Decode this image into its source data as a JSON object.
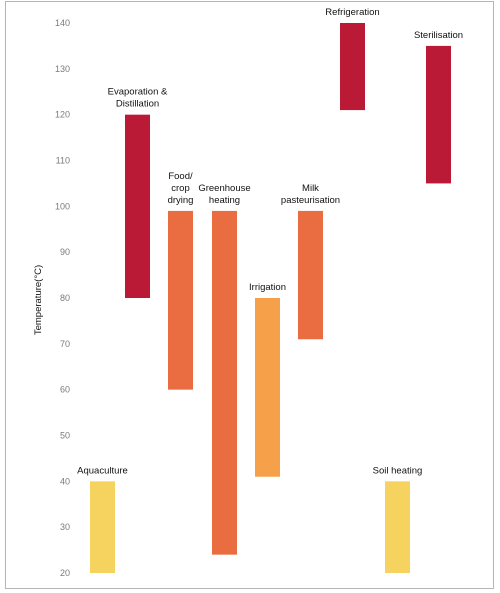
{
  "chart_data": {
    "type": "bar",
    "subtype": "floating-range",
    "ylabel": "Temperature(°C)",
    "ylim": [
      20,
      140
    ],
    "yticks": [
      20,
      30,
      40,
      50,
      60,
      70,
      80,
      90,
      100,
      110,
      120,
      130,
      140
    ],
    "grid": false,
    "legend": "none",
    "colors": {
      "dark_red": "#bb1a36",
      "orange": "#ea6d42",
      "light_orange": "#f6a14a",
      "yellow": "#f6d35e"
    },
    "series": [
      {
        "category": [
          "Aquaculture"
        ],
        "low": 20,
        "high": 40,
        "color": "yellow"
      },
      {
        "category": [
          "Evaporation &",
          "Distillation"
        ],
        "low": 80,
        "high": 120,
        "color": "dark_red"
      },
      {
        "category": [
          "Food/",
          "crop",
          "drying"
        ],
        "low": 60,
        "high": 99,
        "color": "orange"
      },
      {
        "category": [
          "Greenhouse",
          "heating"
        ],
        "low": 24,
        "high": 99,
        "color": "orange"
      },
      {
        "category": [
          "Irrigation"
        ],
        "low": 41,
        "high": 80,
        "color": "light_orange"
      },
      {
        "category": [
          "Milk",
          "pasteurisation"
        ],
        "low": 71,
        "high": 99,
        "color": "orange"
      },
      {
        "category": [
          "Refrigeration"
        ],
        "low": 121,
        "high": 140,
        "color": "dark_red"
      },
      {
        "category": [
          "Soil heating"
        ],
        "low": 20,
        "high": 40,
        "color": "yellow"
      },
      {
        "category": [
          "Sterilisation"
        ],
        "low": 105,
        "high": 135,
        "color": "dark_red"
      }
    ]
  }
}
